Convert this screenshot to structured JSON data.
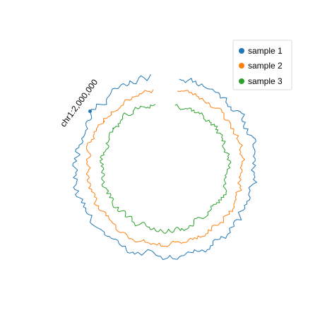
{
  "chart_data": {
    "type": "line",
    "subtype": "circular-genome-track",
    "grid": false,
    "legend_position": "top-right",
    "annotation": {
      "label": "chr1:2,000,000",
      "position_bp": 2000000,
      "marker_series": "sample 1"
    },
    "angle_axis": {
      "start_bp": 0,
      "end_bp": 2300000,
      "gap_degrees": 18
    },
    "series": [
      {
        "name": "sample 1",
        "color": "#1f77b4",
        "level": 1.0,
        "noise": 0.035,
        "points": 230,
        "seed": 11
      },
      {
        "name": "sample 2",
        "color": "#ff7f0e",
        "level": 0.86,
        "noise": 0.025,
        "points": 230,
        "seed": 23
      },
      {
        "name": "sample 3",
        "color": "#2ca02c",
        "level": 0.7,
        "noise": 0.028,
        "points": 230,
        "seed": 37
      }
    ]
  }
}
